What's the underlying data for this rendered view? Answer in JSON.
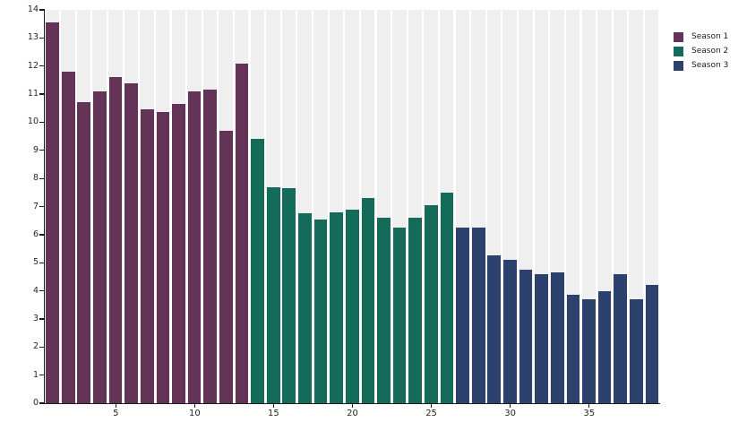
{
  "chart_data": {
    "type": "bar",
    "title": "",
    "xlabel": "",
    "ylabel": "",
    "ylim": [
      0,
      14
    ],
    "n_bars": 39,
    "y_ticks": [
      0,
      1,
      2,
      3,
      4,
      5,
      6,
      7,
      8,
      9,
      10,
      11,
      12,
      13,
      14
    ],
    "x_ticks": [
      5,
      10,
      15,
      20,
      25,
      30,
      35
    ],
    "grid": "vertical-stripes-on-gray-bands",
    "legend_position": "top-right",
    "series": [
      {
        "name": "Season 1",
        "color": "#633457",
        "x_start": 1,
        "values": [
          13.55,
          11.8,
          10.7,
          11.1,
          11.6,
          11.4,
          10.45,
          10.35,
          10.65,
          11.1,
          11.15,
          9.7,
          12.1
        ]
      },
      {
        "name": "Season 2",
        "color": "#146b59",
        "x_start": 14,
        "values": [
          9.4,
          7.7,
          7.65,
          6.75,
          6.55,
          6.8,
          6.9,
          7.3,
          6.6,
          6.25,
          6.6,
          7.05,
          7.5
        ]
      },
      {
        "name": "Season 3",
        "color": "#2d416f",
        "x_start": 27,
        "values": [
          6.25,
          6.25,
          5.25,
          5.1,
          4.75,
          4.6,
          4.65,
          3.85,
          3.7,
          4.0,
          4.6,
          3.7,
          4.2
        ]
      }
    ]
  },
  "colors": {
    "background": "#ffffff",
    "panel_stripe": "#efefef",
    "axis": "#1a1a1a",
    "tick_label": "#262626"
  }
}
